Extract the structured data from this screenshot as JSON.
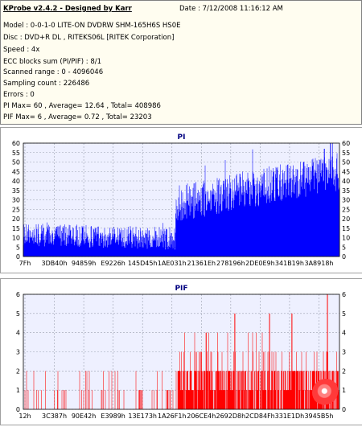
{
  "header": {
    "title": "KProbe v2.4.2 - Designed by Karr",
    "date": "Date : 7/12/2008 11:16:12 AM"
  },
  "info_lines": [
    "Model : 0-0-1-0 LITE-ON DVDRW SHM-165H6S HS0E",
    "Disc : DVD+R DL , RITEKS06L [RITEK Corporation]",
    "Speed : 4x",
    "ECC blocks sum (PI/PIF) : 8/1",
    "Scanned range : 0 - 4096046",
    "Sampling count : 226486",
    "Errors : 0",
    "PI Max= 60 , Average= 12.64 , Total= 408986",
    "PIF Max= 6 , Average= 0.72 , Total= 23203"
  ],
  "colors": {
    "pi": "#0000ff",
    "pif": "#ff0000",
    "title": "#000080",
    "plot_bg": "#eef0ff"
  },
  "chart_data": [
    {
      "type": "bar",
      "title": "PI",
      "ylim": [
        0,
        60
      ],
      "yticks": [
        0,
        5,
        10,
        15,
        20,
        25,
        30,
        35,
        40,
        45,
        50,
        55,
        60
      ],
      "xticks": [
        "7Fh",
        "3DB40h",
        "94859h",
        "E9226h",
        "145D45h",
        "1AE031h",
        "21361Eh",
        "278196h",
        "2DE0E9h",
        "341B19h",
        "3A8918h"
      ],
      "xlim": [
        0,
        4096046
      ],
      "grid": true,
      "max": 60,
      "average": 12.64,
      "segments": [
        {
          "x_start": 0,
          "x_end": 1970000,
          "base_start": 11,
          "base_end": 9,
          "noise": 6
        },
        {
          "x_start": 1970000,
          "x_end": 4096046,
          "base_start": 27,
          "base_end": 44,
          "noise": 10
        }
      ],
      "peaks": [
        {
          "x": 3980000,
          "y": 60
        },
        {
          "x": 3900000,
          "y": 57
        },
        {
          "x": 3630000,
          "y": 50
        }
      ]
    },
    {
      "type": "bar",
      "title": "PIF",
      "ylim": [
        0,
        6
      ],
      "yticks": [
        0,
        1,
        2,
        3,
        4,
        5,
        6
      ],
      "xticks": [
        "12h",
        "3C387h",
        "90E42h",
        "E3989h",
        "13E173h",
        "1A26F1h",
        "206CE4h",
        "2692D8h",
        "2CD84Fh",
        "331E1Dh",
        "3945B5h"
      ],
      "xlim": [
        0,
        4096046
      ],
      "grid": true,
      "max": 6,
      "average": 0.72,
      "segments": [
        {
          "x_start": 0,
          "x_end": 2000000,
          "density": 0.12,
          "levels": [
            1,
            1,
            2
          ]
        },
        {
          "x_start": 2000000,
          "x_end": 4096046,
          "density": 0.85,
          "levels": [
            1,
            1,
            2,
            2,
            2,
            3
          ]
        }
      ],
      "peaks": [
        {
          "x": 3940000,
          "y": 6
        },
        {
          "x": 2740000,
          "y": 5
        },
        {
          "x": 3190000,
          "y": 5
        },
        {
          "x": 3480000,
          "y": 5
        }
      ]
    }
  ]
}
